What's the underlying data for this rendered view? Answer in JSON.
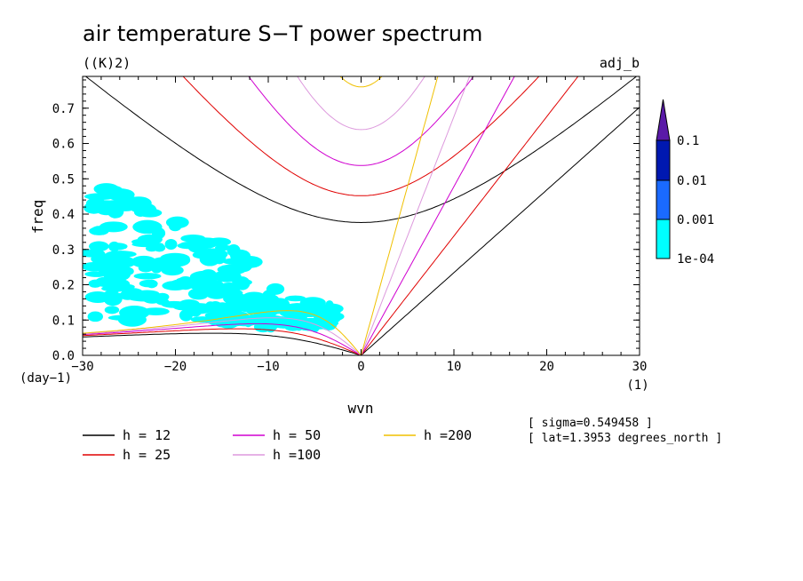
{
  "chart_data": {
    "type": "contour",
    "title": "air temperature S−T power spectrum",
    "units": "((K)2)",
    "run_label": "adj_b",
    "xlabel": "wvn",
    "ylabel": "freq",
    "x_unit": "(1)",
    "y_unit": "(day−1)",
    "xlim": [
      -30,
      30
    ],
    "ylim": [
      0,
      0.79
    ],
    "x_ticks": [
      -30,
      -20,
      -10,
      0,
      10,
      20,
      30
    ],
    "x_tick_labels": [
      "−30",
      "−20",
      "−10",
      "0",
      "10",
      "20",
      "30"
    ],
    "y_ticks": [
      0.0,
      0.1,
      0.2,
      0.3,
      0.4,
      0.5,
      0.6,
      0.7
    ],
    "y_tick_labels": [
      "0.0",
      "0.1",
      "0.2",
      "0.3",
      "0.4",
      "0.5",
      "0.6",
      "0.7"
    ],
    "colorbar": {
      "levels": [
        "0.1",
        "0.01",
        "0.001",
        "1e-04"
      ],
      "colors": [
        "#5a1aa8",
        "#0018b0",
        "#1a6aff",
        "#00ffff"
      ]
    },
    "dispersion_curves": [
      {
        "label": "h = 12",
        "h": 12,
        "color": "#000000"
      },
      {
        "label": "h = 25",
        "h": 25,
        "color": "#e00000"
      },
      {
        "label": "h = 50",
        "h": 50,
        "color": "#d000d0"
      },
      {
        "label": "h =100",
        "h": 100,
        "color": "#dd99dd"
      },
      {
        "label": "h =200",
        "h": 200,
        "color": "#f0c000"
      }
    ],
    "info": [
      "[ sigma=0.549458 ]",
      "[ lat=1.3953 degrees_north ]"
    ]
  }
}
